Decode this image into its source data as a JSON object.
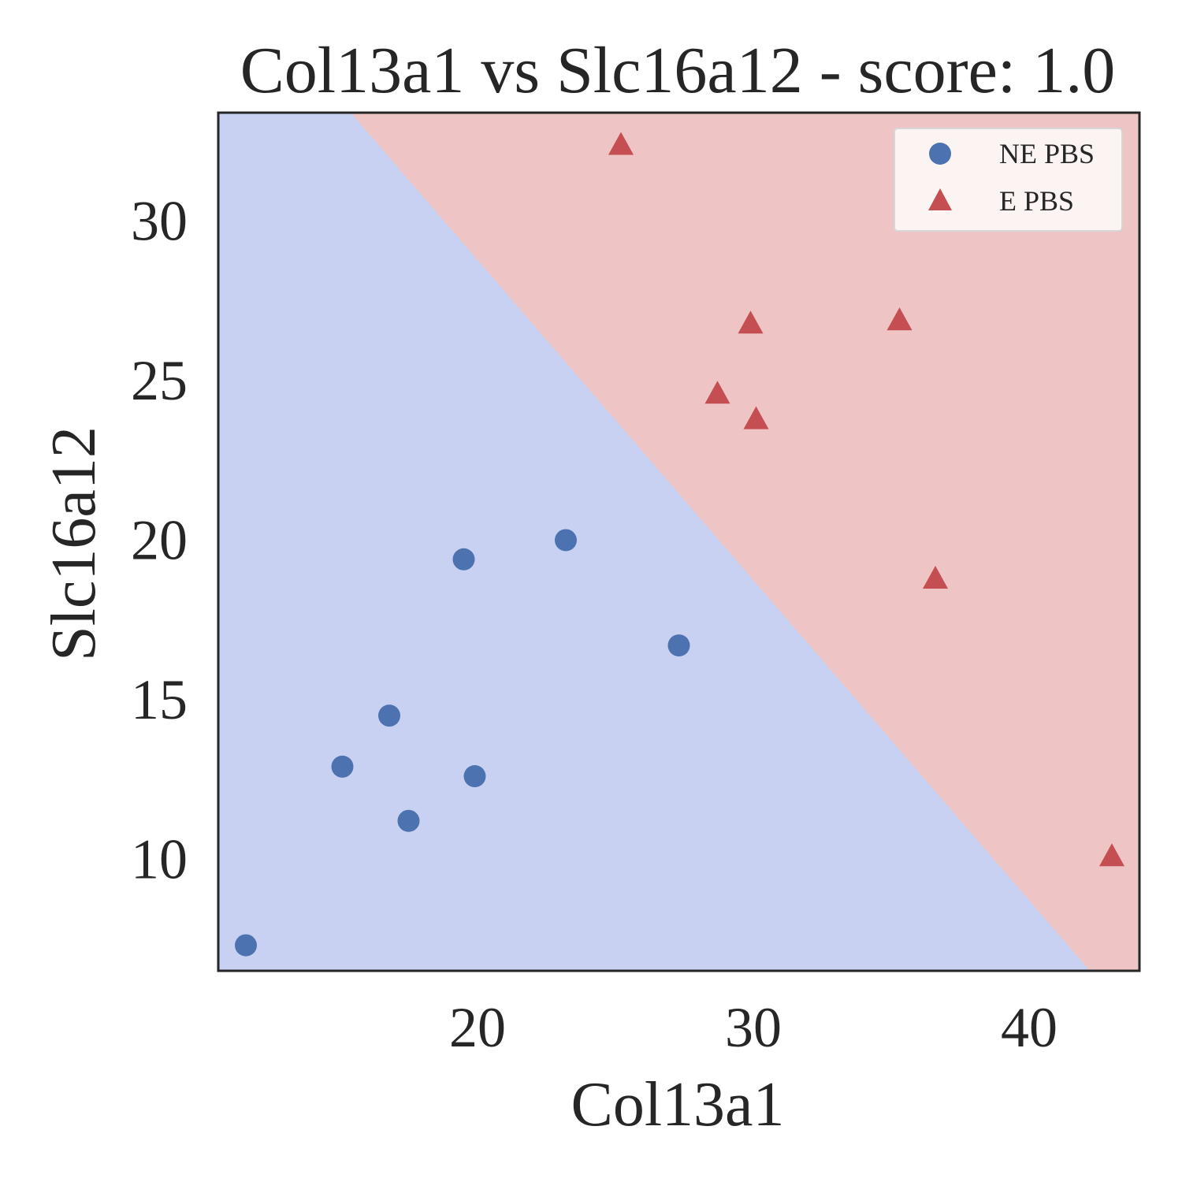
{
  "chart_data": {
    "type": "scatter",
    "title": "Col13a1 vs Slc16a12 - score: 1.0",
    "xlabel": "Col13a1",
    "ylabel": "Slc16a12",
    "xlim": [
      10.6,
      44.0
    ],
    "ylim": [
      6.5,
      33.4
    ],
    "xticks": [
      20,
      30,
      40
    ],
    "yticks": [
      10,
      15,
      20,
      25,
      30
    ],
    "grid": false,
    "legend_position": "top-right",
    "decision_regions": {
      "boundary": [
        [
          15.4,
          33.4
        ],
        [
          42.2,
          6.5
        ]
      ],
      "lower_left_class": "NE PBS",
      "upper_right_class": "E PBS",
      "colors": {
        "NE PBS": "#c8d1f1",
        "E PBS": "#eec4c4"
      }
    },
    "series": [
      {
        "name": "NE PBS",
        "marker": "circle",
        "color": "#4c72b0",
        "points": [
          [
            11.6,
            7.3
          ],
          [
            15.1,
            12.9
          ],
          [
            16.8,
            14.5
          ],
          [
            17.5,
            11.2
          ],
          [
            19.5,
            19.4
          ],
          [
            19.9,
            12.6
          ],
          [
            23.2,
            20.0
          ],
          [
            27.3,
            16.7
          ]
        ]
      },
      {
        "name": "E PBS",
        "marker": "triangle",
        "color": "#c44e52",
        "points": [
          [
            25.2,
            32.4
          ],
          [
            28.7,
            24.6
          ],
          [
            29.9,
            26.8
          ],
          [
            30.1,
            23.8
          ],
          [
            35.3,
            26.9
          ],
          [
            36.6,
            18.8
          ],
          [
            43.0,
            10.1
          ]
        ]
      }
    ]
  }
}
